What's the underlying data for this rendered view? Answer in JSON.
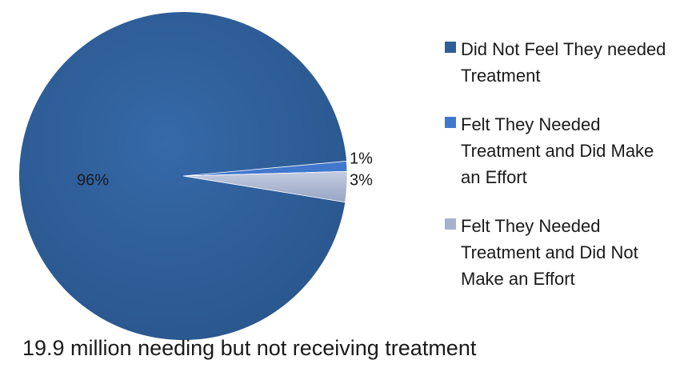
{
  "chart_data": {
    "type": "pie",
    "title": "",
    "caption": "19.9 million needing but not receiving treatment",
    "legend_position": "right",
    "slices": [
      {
        "label": "Did Not Feel They needed Treatment",
        "value": 96,
        "value_label": "96%",
        "color": "#2E5E98"
      },
      {
        "label": "Felt They Needed Treatment and Did Make an Effort",
        "value": 1,
        "value_label": "1%",
        "color": "#4178CE"
      },
      {
        "label": "Felt They Needed Treatment and Did Not Make an Effort",
        "value": 3,
        "value_label": "3%",
        "color": "#A7B3CE"
      }
    ]
  },
  "legend": {
    "items": [
      {
        "label": "Did Not Feel They needed Treatment"
      },
      {
        "label": "Felt They Needed Treatment and Did Make an Effort"
      },
      {
        "label": "Felt They Needed Treatment and Did Not Make an Effort"
      }
    ]
  }
}
